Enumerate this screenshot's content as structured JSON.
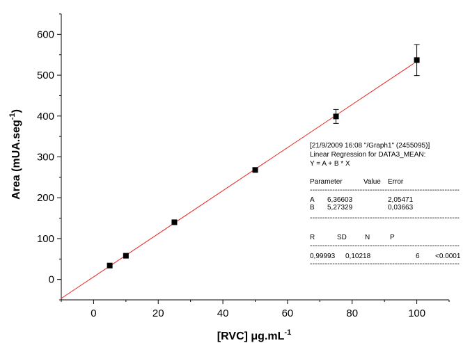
{
  "chart_data": {
    "type": "scatter",
    "xlabel": "[RVC] μg.mL",
    "xlabel_sup": "-1",
    "ylabel": "Area (mUA.seg",
    "ylabel_sup": "-1",
    "ylabel_close": ")",
    "xlim": [
      -10,
      110
    ],
    "ylim": [
      -50,
      650
    ],
    "x_ticks": [
      0,
      20,
      40,
      60,
      80,
      100
    ],
    "y_ticks": [
      0,
      100,
      200,
      300,
      400,
      500,
      600
    ],
    "grid": false,
    "points": [
      {
        "x": 5,
        "y": 34,
        "err": 0
      },
      {
        "x": 10,
        "y": 58,
        "err": 0
      },
      {
        "x": 25,
        "y": 140,
        "err": 0
      },
      {
        "x": 50,
        "y": 268,
        "err": 0
      },
      {
        "x": 75,
        "y": 399,
        "err": 17
      },
      {
        "x": 100,
        "y": 537,
        "err": 38
      }
    ],
    "fit_line": {
      "intercept": 6.36603,
      "slope": 5.27329,
      "color": "#e8201f"
    },
    "marker_color": "#000000"
  },
  "regression_info": {
    "header_lines": [
      "[21/9/2009 16:08 \"/Graph1\" (2455095)]",
      "Linear Regression for DATA3_MEAN:",
      "Y = A + B * X"
    ],
    "param_headers": [
      "Parameter",
      "Value",
      "Error"
    ],
    "params": [
      [
        "A",
        "6,36603",
        "2,05471"
      ],
      [
        "B",
        "5,27329",
        "0,03663"
      ]
    ],
    "stat_headers": [
      "R",
      "SD",
      "N",
      "P"
    ],
    "stats": [
      "0,99993",
      "0,10218",
      "6",
      "<0.0001"
    ],
    "divider": "------------------------------------------------------------"
  }
}
